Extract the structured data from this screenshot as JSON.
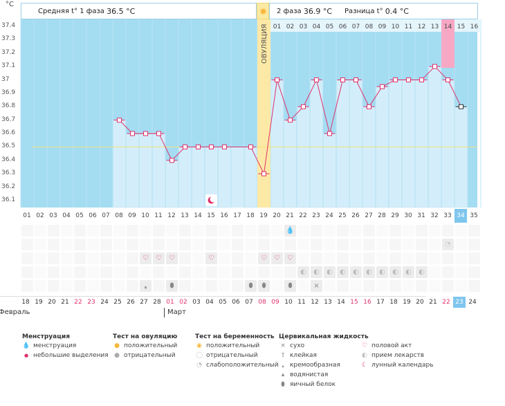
{
  "header": {
    "unit": "°C",
    "phase1_label": "Средняя t° 1 фаза",
    "phase1_value": "36.5 °C",
    "phase2_label": "2 фаза",
    "phase2_value": "36.9 °C",
    "diff_label": "Разница t°",
    "diff_value": "0.4 °C",
    "ovulation_label": "ОВУЛЯЦИЯ"
  },
  "chart_data": {
    "type": "line",
    "title": "Базальная температура",
    "ylabel": "°C",
    "ylim": [
      36.1,
      37.4
    ],
    "yticks": [
      "37.4",
      "37.3",
      "37.2",
      "37.1",
      "37",
      "36.9",
      "36.8",
      "36.7",
      "36.6",
      "36.5",
      "36.4",
      "36.3",
      "36.2",
      "36.1"
    ],
    "coverline": 36.5,
    "ovulation_day": 19,
    "highlight_day": 34,
    "pink_day": 33,
    "cycle_days": [
      "01",
      "02",
      "03",
      "04",
      "05",
      "06",
      "07",
      "08",
      "09",
      "10",
      "11",
      "12",
      "13",
      "14",
      "15",
      "16",
      "17",
      "18",
      "19",
      "20",
      "21",
      "22",
      "23",
      "24",
      "25",
      "26",
      "27",
      "28",
      "29",
      "30",
      "31",
      "32",
      "33",
      "34",
      "35"
    ],
    "luteal_days": [
      "01",
      "02",
      "03",
      "04",
      "05",
      "06",
      "07",
      "08",
      "09",
      "10",
      "11",
      "12",
      "13",
      "14",
      "15",
      "16"
    ],
    "series": [
      {
        "name": "t°",
        "values": [
          null,
          null,
          null,
          null,
          null,
          null,
          null,
          36.7,
          36.6,
          36.6,
          36.6,
          36.4,
          36.5,
          36.5,
          36.5,
          36.5,
          null,
          36.5,
          36.3,
          37.0,
          36.7,
          36.8,
          37.0,
          36.6,
          37.0,
          37.0,
          36.8,
          36.95,
          37.0,
          37.0,
          37.0,
          37.1,
          37.0,
          36.8,
          null
        ]
      }
    ]
  },
  "dates": {
    "days": [
      "18",
      "19",
      "20",
      "21",
      "22",
      "23",
      "24",
      "25",
      "26",
      "27",
      "28",
      "01",
      "02",
      "03",
      "04",
      "05",
      "06",
      "07",
      "08",
      "09",
      "10",
      "11",
      "12",
      "13",
      "14",
      "15",
      "16",
      "17",
      "18",
      "19",
      "20",
      "21",
      "22",
      "23",
      "24"
    ],
    "red": [
      4,
      5,
      11,
      12,
      18,
      19,
      25,
      26,
      32
    ],
    "months": [
      "Февраль",
      "Март"
    ]
  },
  "symbols": {
    "moon_label": "🌙",
    "row1": [
      {
        "day": 21,
        "t": "💧"
      }
    ],
    "row2": [
      {
        "day": 33,
        "t": "◔"
      }
    ],
    "row3": [
      {
        "day": 10,
        "t": "♡"
      },
      {
        "day": 11,
        "t": "♡"
      },
      {
        "day": 12,
        "t": "♡"
      },
      {
        "day": 15,
        "t": "♡"
      },
      {
        "day": 19,
        "t": "♡"
      },
      {
        "day": 20,
        "t": "♡"
      },
      {
        "day": 21,
        "t": "♡"
      }
    ],
    "row4": [
      {
        "day": 22,
        "t": "◐"
      },
      {
        "day": 23,
        "t": "◐"
      },
      {
        "day": 24,
        "t": "◐"
      },
      {
        "day": 25,
        "t": "◐"
      },
      {
        "day": 26,
        "t": "◐"
      },
      {
        "day": 27,
        "t": "◐"
      },
      {
        "day": 28,
        "t": "◐"
      },
      {
        "day": 29,
        "t": "◐"
      },
      {
        "day": 30,
        "t": "◐"
      },
      {
        "day": 31,
        "t": "◐"
      }
    ],
    "row5": [
      {
        "day": 10,
        "t": "❟"
      },
      {
        "day": 12,
        "t": "⬮"
      },
      {
        "day": 18,
        "t": "⬮"
      },
      {
        "day": 19,
        "t": "⬮"
      },
      {
        "day": 21,
        "t": "⬮"
      },
      {
        "day": 23,
        "t": "×"
      }
    ]
  },
  "legend": {
    "menstruation": {
      "title": "Менструация",
      "items": [
        "менструация",
        "небольшие выделения"
      ]
    },
    "ovulation_test": {
      "title": "Тест на овуляцию",
      "items": [
        "положительный",
        "отрицательный"
      ]
    },
    "pregnancy_test": {
      "title": "Тест на беременность",
      "items": [
        "положительный",
        "отрицательный",
        "слабоположительный"
      ]
    },
    "cervical": {
      "title": "Цервикальная жидкость",
      "items": [
        "сухо",
        "клейкая",
        "кремообразная",
        "водянистая",
        "яичный белок"
      ]
    },
    "other": {
      "items": [
        "половой акт",
        "прием лекарств",
        "лунный календарь"
      ]
    }
  }
}
